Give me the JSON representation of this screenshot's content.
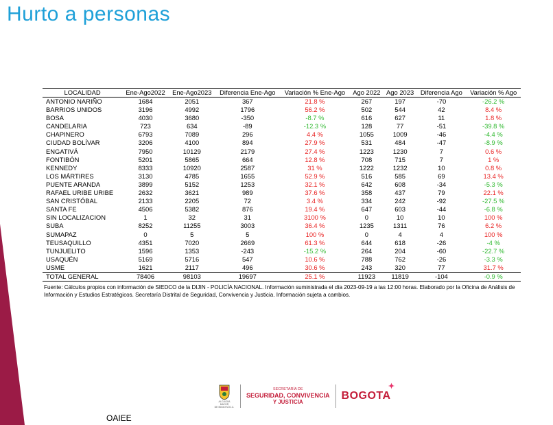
{
  "title": "Hurto a personas",
  "columns": [
    "LOCALIDAD",
    "Ene-Ago2022",
    "Ene-Ago2023",
    "Diferencia Ene-Ago",
    "Variación % Ene-Ago",
    "Ago 2022",
    "Ago 2023",
    "Diferencia Ago",
    "Variación % Ago"
  ],
  "rows": [
    [
      "ANTONIO NARIÑO",
      "1684",
      "2051",
      "367",
      "21.8 %",
      "267",
      "197",
      "-70",
      "-26.2 %"
    ],
    [
      "BARRIOS UNIDOS",
      "3196",
      "4992",
      "1796",
      "56.2 %",
      "502",
      "544",
      "42",
      "8.4 %"
    ],
    [
      "BOSA",
      "4030",
      "3680",
      "-350",
      "-8.7 %",
      "616",
      "627",
      "11",
      "1.8 %"
    ],
    [
      "CANDELARIA",
      "723",
      "634",
      "-89",
      "-12.3 %",
      "128",
      "77",
      "-51",
      "-39.8 %"
    ],
    [
      "CHAPINERO",
      "6793",
      "7089",
      "296",
      "4.4 %",
      "1055",
      "1009",
      "-46",
      "-4.4 %"
    ],
    [
      "CIUDAD BOLÍVAR",
      "3206",
      "4100",
      "894",
      "27.9 %",
      "531",
      "484",
      "-47",
      "-8.9 %"
    ],
    [
      "ENGATIVÁ",
      "7950",
      "10129",
      "2179",
      "27.4 %",
      "1223",
      "1230",
      "7",
      "0.6 %"
    ],
    [
      "FONTIBÓN",
      "5201",
      "5865",
      "664",
      "12.8 %",
      "708",
      "715",
      "7",
      "1 %"
    ],
    [
      "KENNEDY",
      "8333",
      "10920",
      "2587",
      "31 %",
      "1222",
      "1232",
      "10",
      "0.8 %"
    ],
    [
      "LOS MÁRTIRES",
      "3130",
      "4785",
      "1655",
      "52.9 %",
      "516",
      "585",
      "69",
      "13.4 %"
    ],
    [
      "PUENTE ARANDA",
      "3899",
      "5152",
      "1253",
      "32.1 %",
      "642",
      "608",
      "-34",
      "-5.3 %"
    ],
    [
      "RAFAEL URIBE URIBE",
      "2632",
      "3621",
      "989",
      "37.6 %",
      "358",
      "437",
      "79",
      "22.1 %"
    ],
    [
      "SAN CRISTÓBAL",
      "2133",
      "2205",
      "72",
      "3.4 %",
      "334",
      "242",
      "-92",
      "-27.5 %"
    ],
    [
      "SANTA FE",
      "4506",
      "5382",
      "876",
      "19.4 %",
      "647",
      "603",
      "-44",
      "-6.8 %"
    ],
    [
      "SIN LOCALIZACION",
      "1",
      "32",
      "31",
      "3100 %",
      "0",
      "10",
      "10",
      "100 %"
    ],
    [
      "SUBA",
      "8252",
      "11255",
      "3003",
      "36.4 %",
      "1235",
      "1311",
      "76",
      "6.2 %"
    ],
    [
      "SUMAPAZ",
      "0",
      "5",
      "5",
      "100 %",
      "0",
      "4",
      "4",
      "100 %"
    ],
    [
      "TEUSAQUILLO",
      "4351",
      "7020",
      "2669",
      "61.3 %",
      "644",
      "618",
      "-26",
      "-4 %"
    ],
    [
      "TUNJUELITO",
      "1596",
      "1353",
      "-243",
      "-15.2 %",
      "264",
      "204",
      "-60",
      "-22.7 %"
    ],
    [
      "USAQUÉN",
      "5169",
      "5716",
      "547",
      "10.6 %",
      "788",
      "762",
      "-26",
      "-3.3 %"
    ],
    [
      "USME",
      "1621",
      "2117",
      "496",
      "30.6 %",
      "243",
      "320",
      "77",
      "31.7 %"
    ]
  ],
  "total": [
    "TOTAL GENERAL",
    "78406",
    "98103",
    "19697",
    "25.1 %",
    "11923",
    "11819",
    "-104",
    "-0.9 %"
  ],
  "source_note": "Fuente: Cálculos propios con información de SIEDCO de la DIJIN - POLICÍA NACIONAL. Información suministrada el día 2023-09-19 a las 12:00 horas. Elaborado por la Oficina de Análisis de Información y Estudios Estratégicos. Secretaría Distrital de Seguridad, Convivencia y Justicia. Información sujeta a cambios.",
  "logos": {
    "alcaldia": "ALCALDÍA MAYOR\nDE BOGOTÁ D.C.",
    "secretaria_line1": "SECRETARÍA DE",
    "secretaria_line2": "SEGURIDAD, CONVIVENCIA",
    "secretaria_line3": "Y JUSTICIA",
    "bogota": "BOGOTA"
  },
  "footer_label": "OAIEE",
  "colors": {
    "title": "#1ea0d8",
    "increase": "#e81f1f",
    "decrease": "#2eb82e",
    "accent_wedge": "#9b1b46",
    "logo": "#c41e3a"
  }
}
